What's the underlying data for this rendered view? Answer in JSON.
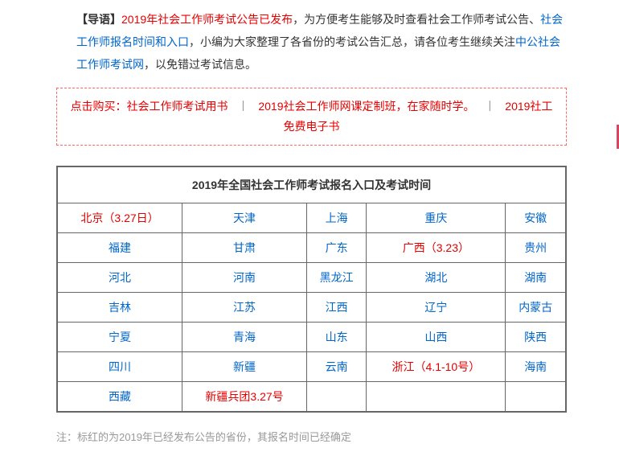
{
  "intro": {
    "label": "【导语】",
    "red1": "2019年社会工作师考试公告已发布",
    "black1": "，为方便考生能够及时查看社会工作师考试公告、",
    "blue1": "社会工作师报名时间和入口",
    "black2": "，小编为大家整理了各省份的考试公告汇总，请各位考生继续关注",
    "blue2": "中公社会工作师考试网",
    "black3": "，以免错过考试信息。"
  },
  "promo": {
    "p1_pre": "点击购买：",
    "p1": "社会工作师考试用书",
    "sep": "丨",
    "p2": "2019社会工作师网课定制班，在家随时学。",
    "p3": "2019社工免费电子书"
  },
  "table": {
    "title": "2019年全国社会工作师考试报名入口及考试时间",
    "rows": [
      [
        {
          "t": "北京（3.27日）",
          "c": "link-red"
        },
        {
          "t": "天津",
          "c": "link-blue"
        },
        {
          "t": "上海",
          "c": "link-blue"
        },
        {
          "t": "重庆",
          "c": "link-blue"
        },
        {
          "t": "安徽",
          "c": "link-blue"
        }
      ],
      [
        {
          "t": "福建",
          "c": "link-blue"
        },
        {
          "t": "甘肃",
          "c": "link-blue"
        },
        {
          "t": "广东",
          "c": "link-blue"
        },
        {
          "t": "广西（3.23）",
          "c": "link-red"
        },
        {
          "t": "贵州",
          "c": "link-blue"
        }
      ],
      [
        {
          "t": "河北",
          "c": "link-blue"
        },
        {
          "t": "河南",
          "c": "link-blue"
        },
        {
          "t": "黑龙江",
          "c": "link-blue"
        },
        {
          "t": "湖北",
          "c": "link-blue"
        },
        {
          "t": "湖南",
          "c": "link-blue"
        }
      ],
      [
        {
          "t": "吉林",
          "c": "link-blue"
        },
        {
          "t": "江苏",
          "c": "link-blue"
        },
        {
          "t": "江西",
          "c": "link-blue"
        },
        {
          "t": "辽宁",
          "c": "link-blue"
        },
        {
          "t": "内蒙古",
          "c": "link-blue"
        }
      ],
      [
        {
          "t": "宁夏",
          "c": "link-blue"
        },
        {
          "t": "青海",
          "c": "link-blue"
        },
        {
          "t": "山东",
          "c": "link-blue"
        },
        {
          "t": "山西",
          "c": "link-blue"
        },
        {
          "t": "陕西",
          "c": "link-blue"
        }
      ],
      [
        {
          "t": "四川",
          "c": "link-blue"
        },
        {
          "t": "新疆",
          "c": "link-blue"
        },
        {
          "t": "云南",
          "c": "link-blue"
        },
        {
          "t": "浙江（4.1-10号）",
          "c": "link-red"
        },
        {
          "t": "海南",
          "c": "link-blue"
        }
      ],
      [
        {
          "t": "西藏",
          "c": "link-blue"
        },
        {
          "t": "新疆兵团3.27号",
          "c": "link-red"
        },
        {
          "t": "",
          "c": ""
        },
        {
          "t": "",
          "c": ""
        },
        {
          "t": "",
          "c": ""
        }
      ]
    ]
  },
  "footnote": "注：标红的为2019年已经发布公告的省份，其报名时间已经确定"
}
